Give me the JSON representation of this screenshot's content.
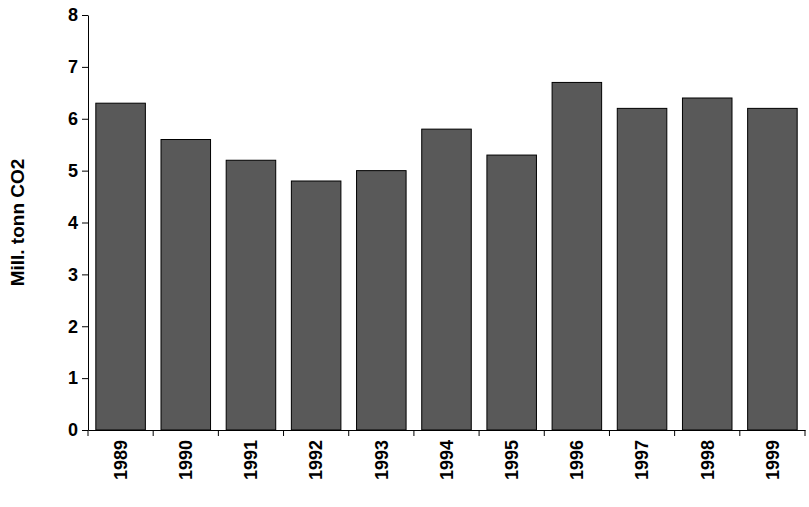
{
  "chart_data": {
    "type": "bar",
    "y_label": "Mill. tonn CO2",
    "categories": [
      "1989",
      "1990",
      "1991",
      "1992",
      "1993",
      "1994",
      "1995",
      "1996",
      "1997",
      "1998",
      "1999"
    ],
    "values": [
      6.3,
      5.6,
      5.2,
      4.8,
      5.0,
      5.8,
      5.3,
      6.7,
      6.2,
      6.4,
      6.2
    ],
    "color": "#595959",
    "ylim": [
      0,
      8
    ],
    "yticks": [
      0,
      1,
      2,
      3,
      4,
      5,
      6,
      7,
      8
    ],
    "grid": false
  }
}
